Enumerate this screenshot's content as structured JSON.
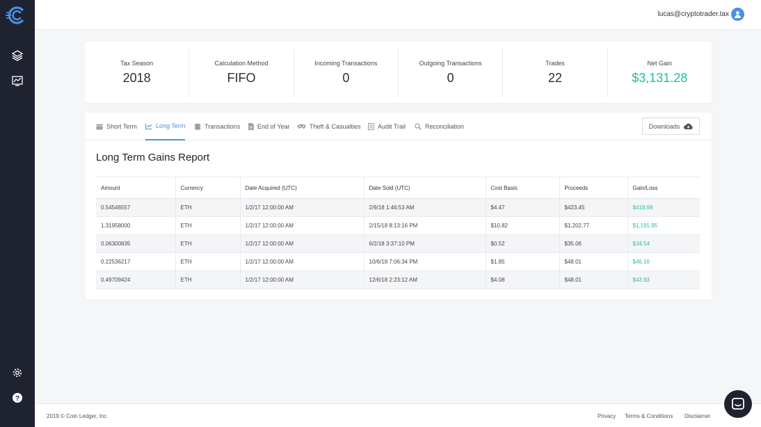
{
  "sidebar": {
    "logo_icon": "coinledger-logo-icon",
    "nav_icons": [
      "layers-icon",
      "chart-icon"
    ],
    "bottom_icons": [
      "gear-icon",
      "help-icon"
    ]
  },
  "header": {
    "user_email": "lucas@cryptotrader.tax",
    "avatar_icon": "user-icon"
  },
  "summary": [
    {
      "label": "Tax Season",
      "value": "2018"
    },
    {
      "label": "Calculation Method",
      "value": "FIFO"
    },
    {
      "label": "Incoming Transactions",
      "value": "0"
    },
    {
      "label": "Outgoing Transactions",
      "value": "0"
    },
    {
      "label": "Trades",
      "value": "22"
    },
    {
      "label": "Net Gain",
      "value": "$3,131.28"
    }
  ],
  "tabs": [
    {
      "label": "Short Term",
      "icon": "table-icon"
    },
    {
      "label": "Long Term",
      "icon": "line-chart-icon"
    },
    {
      "label": "Transactions",
      "icon": "coins-icon"
    },
    {
      "label": "End of Year",
      "icon": "document-icon"
    },
    {
      "label": "Theft & Casualties",
      "icon": "mask-icon"
    },
    {
      "label": "Audit Trail",
      "icon": "list-icon"
    },
    {
      "label": "Reconciliation",
      "icon": "search-icon"
    }
  ],
  "active_tab": "Long Term",
  "downloads_label": "Downloads",
  "report": {
    "title": "Long Term Gains Report",
    "columns": [
      "Amount",
      "Currency",
      "Date Acquired (UTC)",
      "Date Sold (UTC)",
      "Cost Basis",
      "Proceeds",
      "Gain/Loss"
    ],
    "rows": [
      [
        "0.54546557",
        "ETH",
        "1/2/17 12:00:00 AM",
        "2/9/18 1:46:53 AM",
        "$4.47",
        "$423.45",
        "$418.98"
      ],
      [
        "1.31958000",
        "ETH",
        "1/2/17 12:00:00 AM",
        "2/15/18 8:13:16 PM",
        "$10.82",
        "$1,202.77",
        "$1,191.95"
      ],
      [
        "0.06300835",
        "ETH",
        "1/2/17 12:00:00 AM",
        "6/2/18 3:37:10 PM",
        "$0.52",
        "$35.06",
        "$34.54"
      ],
      [
        "0.22536217",
        "ETH",
        "1/2/17 12:00:00 AM",
        "10/6/18 7:06:34 PM",
        "$1.85",
        "$48.01",
        "$46.16"
      ],
      [
        "0.49709424",
        "ETH",
        "1/2/17 12:00:00 AM",
        "12/6/18 2:23:12 AM",
        "$4.08",
        "$48.01",
        "$43.93"
      ]
    ]
  },
  "footer": {
    "copyright": "2019 © Coin Ledger, Inc.",
    "links": [
      "Privacy",
      "Terms & Conditions",
      "Disclaimer"
    ]
  },
  "chat_icon": "chat-icon",
  "colors": {
    "accent": "#4a90e2",
    "positive": "#21c0a0",
    "sidebar": "#1f2330"
  }
}
